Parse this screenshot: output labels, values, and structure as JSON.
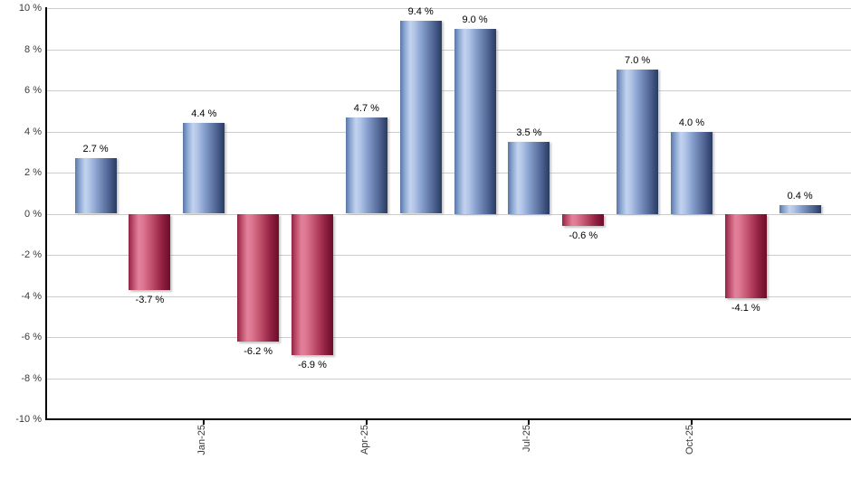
{
  "chart_data": {
    "type": "bar",
    "title": "",
    "xlabel": "",
    "ylabel": "",
    "ylim": [
      -10,
      10
    ],
    "grid": true,
    "legend": "none",
    "values": [
      2.7,
      -3.7,
      4.4,
      -6.2,
      -6.9,
      4.7,
      9.4,
      9.0,
      3.5,
      -0.6,
      7.0,
      4.0,
      -4.1,
      0.4
    ],
    "bar_labels": [
      "2.7 %",
      "-3.7 %",
      "4.4 %",
      "-6.2 %",
      "-6.9 %",
      "4.7 %",
      "9.4 %",
      "9.0 %",
      "3.5 %",
      "-0.6 %",
      "7.0 %",
      "4.0 %",
      "-4.1 %",
      "0.4 %"
    ],
    "y_tick_labels": [
      "10 %",
      "8 %",
      "6 %",
      "4 %",
      "2 %",
      "0 %",
      "-2 %",
      "-4 %",
      "-6 %",
      "-8 %",
      "-10 %"
    ],
    "x_ticks": [
      {
        "label": "Jan-25",
        "bar_index": 2
      },
      {
        "label": "Apr-25",
        "bar_index": 5
      },
      {
        "label": "Jul-25",
        "bar_index": 8
      },
      {
        "label": "Oct-25",
        "bar_index": 11
      }
    ],
    "colors": {
      "positive_bar_edge": "#5a76a4",
      "positive_bar_light": "#c3d3ef",
      "positive_bar_dark": "#2b3c63",
      "negative_bar_edge": "#8e2442",
      "negative_bar_light": "#e2809b",
      "negative_bar_dark": "#6d0e2a",
      "gridline": "#cccccc",
      "axis": "#000000",
      "value_label_text": "#000000",
      "tick_label_text": "#3a3a3a",
      "background": "#ffffff"
    }
  }
}
